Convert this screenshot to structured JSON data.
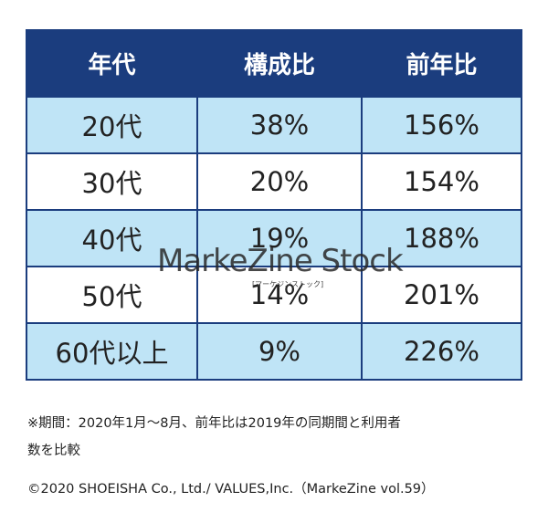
{
  "table": {
    "header": [
      "年代",
      "構成比",
      "前年比"
    ],
    "rows": [
      [
        "20代",
        "38%",
        "156%"
      ],
      [
        "30代",
        "20%",
        "154%"
      ],
      [
        "40代",
        "19%",
        "188%"
      ],
      [
        "50代",
        "14%",
        "201%"
      ],
      [
        "60代以上",
        "9%",
        "226%"
      ]
    ]
  },
  "footnote": [
    "※期間：2020年1月～8月、前年比は2019年の同期間と利用者",
    "数を比較"
  ],
  "copyright": "©2020 SHOEISHA Co., Ltd./ VALUES,Inc.（MarkeZine vol.59）",
  "watermark": {
    "logo": "MarkeZine Stock",
    "reading": "[マーケジンストック]"
  }
}
